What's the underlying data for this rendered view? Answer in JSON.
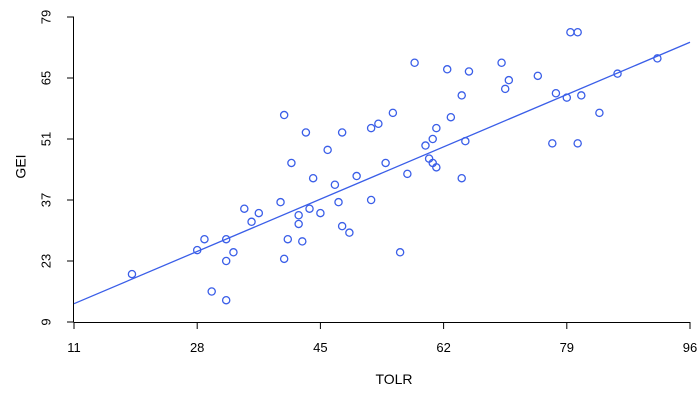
{
  "chart_data": {
    "type": "scatter",
    "title": "",
    "xlabel": "TOLR",
    "ylabel": "GEI",
    "xlim": [
      11,
      96
    ],
    "ylim": [
      9,
      79
    ],
    "xticks": [
      11,
      28,
      45,
      62,
      79,
      96
    ],
    "yticks": [
      9,
      23,
      37,
      51,
      65,
      79
    ],
    "grid": false,
    "colors": {
      "points": "#3a5ee8",
      "line": "#3a5ee8"
    },
    "points": [
      [
        19,
        20
      ],
      [
        28,
        25.5
      ],
      [
        29,
        28
      ],
      [
        30,
        16
      ],
      [
        32,
        28
      ],
      [
        32,
        23
      ],
      [
        32,
        14
      ],
      [
        33,
        25
      ],
      [
        34.5,
        35
      ],
      [
        35.5,
        32
      ],
      [
        36.5,
        34
      ],
      [
        39.5,
        36.5
      ],
      [
        40.5,
        28
      ],
      [
        40,
        23.5
      ],
      [
        40,
        56.5
      ],
      [
        41,
        45.5
      ],
      [
        42,
        31.5
      ],
      [
        42.5,
        27.5
      ],
      [
        42,
        33.5
      ],
      [
        43,
        52.5
      ],
      [
        43.5,
        35
      ],
      [
        44,
        42
      ],
      [
        45,
        34
      ],
      [
        46,
        48.5
      ],
      [
        47,
        40.5
      ],
      [
        47.5,
        36.5
      ],
      [
        48,
        31
      ],
      [
        48,
        52.5
      ],
      [
        49,
        29.5
      ],
      [
        50,
        42.5
      ],
      [
        52,
        37
      ],
      [
        52,
        53.5
      ],
      [
        53,
        54.5
      ],
      [
        54,
        45.5
      ],
      [
        55,
        57
      ],
      [
        56,
        25
      ],
      [
        57,
        43
      ],
      [
        58,
        68.5
      ],
      [
        59.5,
        49.5
      ],
      [
        60,
        46.5
      ],
      [
        60.5,
        51
      ],
      [
        60.5,
        45.5
      ],
      [
        61,
        44.5
      ],
      [
        61,
        53.5
      ],
      [
        62.5,
        67
      ],
      [
        63,
        56
      ],
      [
        64.5,
        61
      ],
      [
        64.5,
        42
      ],
      [
        65,
        50.5
      ],
      [
        65.5,
        66.5
      ],
      [
        70,
        68.5
      ],
      [
        70.5,
        62.5
      ],
      [
        71,
        64.5
      ],
      [
        75,
        65.5
      ],
      [
        77,
        50
      ],
      [
        77.5,
        61.5
      ],
      [
        79,
        60.5
      ],
      [
        79.5,
        75.5
      ],
      [
        80.5,
        50
      ],
      [
        80.5,
        75.5
      ],
      [
        81,
        61
      ],
      [
        83.5,
        57
      ],
      [
        86,
        66
      ],
      [
        91.5,
        69.5
      ]
    ],
    "fit_line": {
      "x": [
        11,
        96
      ],
      "y": [
        13.2,
        73.2
      ]
    }
  }
}
